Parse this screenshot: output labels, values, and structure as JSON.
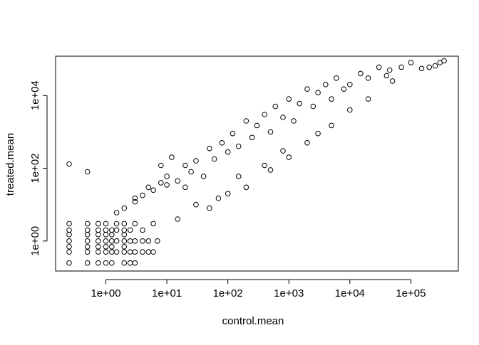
{
  "chart_data": {
    "type": "scatter",
    "title": "",
    "xlabel": "control.mean",
    "ylabel": "treated.mean",
    "xscale": "log",
    "yscale": "log",
    "xlim": [
      0.15,
      600000
    ],
    "ylim": [
      0.15,
      120000
    ],
    "grid": false,
    "legend": "none",
    "x_ticks": [
      1,
      10,
      100,
      1000,
      10000,
      100000
    ],
    "x_tick_labels": [
      "1e+00",
      "1e+01",
      "1e+02",
      "1e+03",
      "1e+04",
      "1e+05"
    ],
    "y_ticks": [
      1,
      100,
      10000
    ],
    "y_tick_labels": [
      "1e+00",
      "1e+02",
      "1e+04"
    ],
    "marker": "open-circle",
    "color": "#000000",
    "points": [
      [
        0.25,
        130
      ],
      [
        0.5,
        80
      ],
      [
        0.25,
        3
      ],
      [
        0.25,
        2
      ],
      [
        0.25,
        1.5
      ],
      [
        0.25,
        1
      ],
      [
        0.25,
        0.7
      ],
      [
        0.25,
        0.5
      ],
      [
        0.25,
        0.25
      ],
      [
        0.5,
        3
      ],
      [
        0.5,
        2
      ],
      [
        0.5,
        1.5
      ],
      [
        0.5,
        1
      ],
      [
        0.5,
        0.7
      ],
      [
        0.5,
        0.5
      ],
      [
        0.5,
        0.25
      ],
      [
        0.75,
        3
      ],
      [
        0.75,
        2
      ],
      [
        0.75,
        1.5
      ],
      [
        0.75,
        1
      ],
      [
        0.75,
        0.7
      ],
      [
        0.75,
        0.5
      ],
      [
        0.75,
        0.25
      ],
      [
        1.0,
        3
      ],
      [
        1.0,
        2
      ],
      [
        1.0,
        1.5
      ],
      [
        1.0,
        1
      ],
      [
        1.0,
        0.7
      ],
      [
        1.0,
        0.5
      ],
      [
        1.0,
        0.25
      ],
      [
        1.25,
        2
      ],
      [
        1.25,
        1.5
      ],
      [
        1.25,
        1
      ],
      [
        1.25,
        0.7
      ],
      [
        1.25,
        0.5
      ],
      [
        1.25,
        0.25
      ],
      [
        1.5,
        3
      ],
      [
        1.5,
        2
      ],
      [
        1.5,
        1
      ],
      [
        1.5,
        0.5
      ],
      [
        2.0,
        3
      ],
      [
        2.0,
        2
      ],
      [
        2.0,
        1.5
      ],
      [
        2.0,
        1
      ],
      [
        2.0,
        0.7
      ],
      [
        2.0,
        0.5
      ],
      [
        2.0,
        0.25
      ],
      [
        2.5,
        2
      ],
      [
        2.5,
        1
      ],
      [
        2.5,
        0.5
      ],
      [
        2.5,
        0.25
      ],
      [
        3.0,
        3
      ],
      [
        3.0,
        1
      ],
      [
        3.0,
        0.5
      ],
      [
        3.0,
        0.25
      ],
      [
        4.0,
        2
      ],
      [
        4.0,
        1
      ],
      [
        4.0,
        0.5
      ],
      [
        5.0,
        1
      ],
      [
        5.0,
        0.5
      ],
      [
        6.0,
        0.5
      ],
      [
        7.0,
        1
      ],
      [
        1.5,
        6
      ],
      [
        2.0,
        8
      ],
      [
        3.0,
        12
      ],
      [
        4.0,
        18
      ],
      [
        5.0,
        30
      ],
      [
        6.0,
        25
      ],
      [
        8.0,
        40
      ],
      [
        10,
        60
      ],
      [
        10,
        35
      ],
      [
        12,
        200
      ],
      [
        15,
        45
      ],
      [
        20,
        120
      ],
      [
        20,
        30
      ],
      [
        25,
        80
      ],
      [
        30,
        160
      ],
      [
        40,
        60
      ],
      [
        50,
        350
      ],
      [
        60,
        180
      ],
      [
        80,
        500
      ],
      [
        100,
        280
      ],
      [
        120,
        900
      ],
      [
        150,
        400
      ],
      [
        200,
        2000
      ],
      [
        250,
        700
      ],
      [
        300,
        1500
      ],
      [
        400,
        3000
      ],
      [
        500,
        1000
      ],
      [
        600,
        5000
      ],
      [
        800,
        2500
      ],
      [
        1000,
        8000
      ],
      [
        1200,
        2000
      ],
      [
        1500,
        6000
      ],
      [
        2000,
        15000
      ],
      [
        2500,
        5000
      ],
      [
        3000,
        12000
      ],
      [
        4000,
        20000
      ],
      [
        5000,
        8000
      ],
      [
        6000,
        30000
      ],
      [
        8000,
        15000
      ],
      [
        10000,
        20000
      ],
      [
        15000,
        40000
      ],
      [
        20000,
        30000
      ],
      [
        30000,
        60000
      ],
      [
        40000,
        35000
      ],
      [
        45000,
        50000
      ],
      [
        50000,
        25000
      ],
      [
        70000,
        60000
      ],
      [
        100000,
        80000
      ],
      [
        150000,
        55000
      ],
      [
        200000,
        60000
      ],
      [
        250000,
        65000
      ],
      [
        300000,
        80000
      ],
      [
        350000,
        90000
      ],
      [
        50,
        8
      ],
      [
        100,
        20
      ],
      [
        200,
        30
      ],
      [
        500,
        90
      ],
      [
        1000,
        200
      ],
      [
        2000,
        500
      ],
      [
        5000,
        1500
      ],
      [
        10000,
        4000
      ],
      [
        20000,
        8000
      ],
      [
        8,
        120
      ],
      [
        3,
        15
      ],
      [
        6,
        3
      ],
      [
        15,
        4
      ],
      [
        30,
        10
      ],
      [
        70,
        15
      ],
      [
        150,
        60
      ],
      [
        400,
        120
      ],
      [
        800,
        300
      ],
      [
        3000,
        900
      ]
    ]
  }
}
